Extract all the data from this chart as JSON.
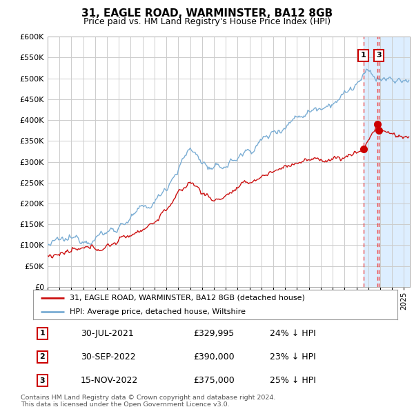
{
  "title": "31, EAGLE ROAD, WARMINSTER, BA12 8GB",
  "subtitle": "Price paid vs. HM Land Registry's House Price Index (HPI)",
  "legend_line1": "31, EAGLE ROAD, WARMINSTER, BA12 8GB (detached house)",
  "legend_line2": "HPI: Average price, detached house, Wiltshire",
  "transactions": [
    {
      "num": 1,
      "date": "30-JUL-2021",
      "price": 329995,
      "pct": "24%",
      "dir": "↓"
    },
    {
      "num": 2,
      "date": "30-SEP-2022",
      "price": 390000,
      "pct": "23%",
      "dir": "↓"
    },
    {
      "num": 3,
      "date": "15-NOV-2022",
      "price": 375000,
      "pct": "25%",
      "dir": "↓"
    }
  ],
  "transaction_dates_decimal": [
    2021.58,
    2022.75,
    2022.88
  ],
  "hpi_color": "#7aadd4",
  "price_color": "#cc1111",
  "marker_color": "#cc0000",
  "vline_color": "#ee3333",
  "highlight_color": "#ddeeff",
  "grid_color": "#cccccc",
  "background_color": "#ffffff",
  "footnote": "Contains HM Land Registry data © Crown copyright and database right 2024.\nThis data is licensed under the Open Government Licence v3.0.",
  "ylim": [
    0,
    600000
  ],
  "xstart": 1995.0,
  "xend": 2025.5
}
